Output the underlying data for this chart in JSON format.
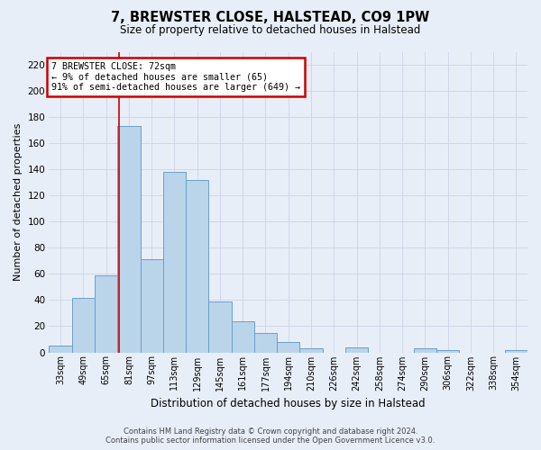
{
  "title1": "7, BREWSTER CLOSE, HALSTEAD, CO9 1PW",
  "title2": "Size of property relative to detached houses in Halstead",
  "xlabel": "Distribution of detached houses by size in Halstead",
  "ylabel": "Number of detached properties",
  "categories": [
    "33sqm",
    "49sqm",
    "65sqm",
    "81sqm",
    "97sqm",
    "113sqm",
    "129sqm",
    "145sqm",
    "161sqm",
    "177sqm",
    "194sqm",
    "210sqm",
    "226sqm",
    "242sqm",
    "258sqm",
    "274sqm",
    "290sqm",
    "306sqm",
    "322sqm",
    "338sqm",
    "354sqm"
  ],
  "values": [
    5,
    42,
    59,
    173,
    71,
    138,
    132,
    39,
    24,
    15,
    8,
    3,
    0,
    4,
    0,
    0,
    3,
    2,
    0,
    0,
    2
  ],
  "bar_color": "#bad4ea",
  "bar_edge_color": "#6aa0cb",
  "grid_color": "#d0d8e8",
  "annotation_text_line1": "7 BREWSTER CLOSE: 72sqm",
  "annotation_text_line2": "← 9% of detached houses are smaller (65)",
  "annotation_text_line3": "91% of semi-detached houses are larger (649) →",
  "annotation_box_facecolor": "#ffffff",
  "annotation_box_edgecolor": "#cc0000",
  "vline_color": "#cc0000",
  "vline_x": 2.55,
  "ylim": [
    0,
    230
  ],
  "yticks": [
    0,
    20,
    40,
    60,
    80,
    100,
    120,
    140,
    160,
    180,
    200,
    220
  ],
  "footer1": "Contains HM Land Registry data © Crown copyright and database right 2024.",
  "footer2": "Contains public sector information licensed under the Open Government Licence v3.0.",
  "bg_color": "#e8eef8"
}
